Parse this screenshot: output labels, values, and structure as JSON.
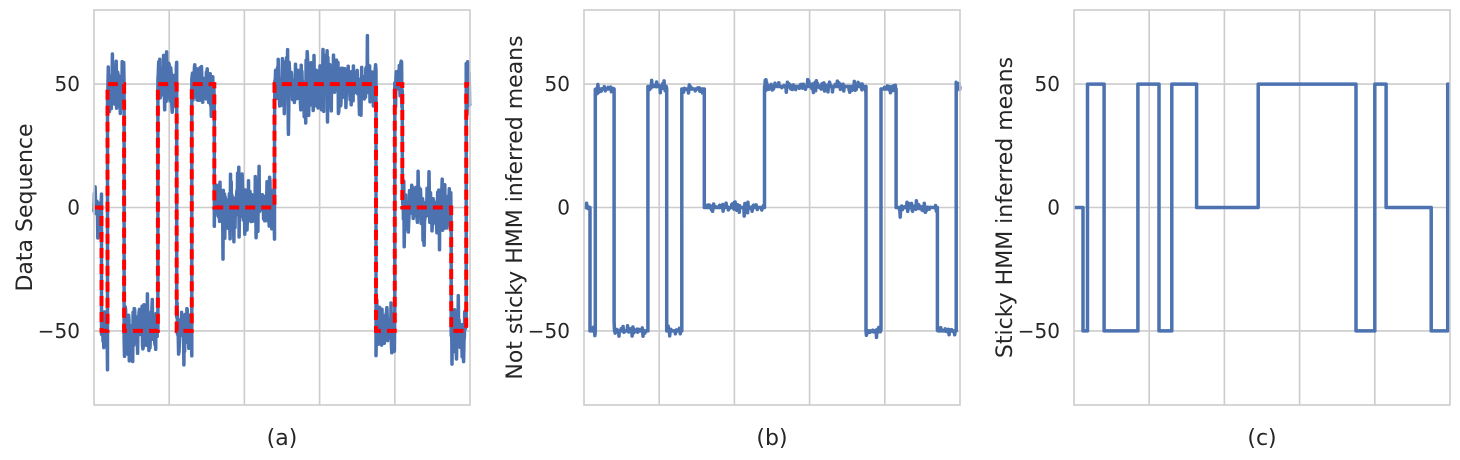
{
  "chart_data": [
    {
      "type": "line",
      "panel_label": "(a)",
      "ylabel": "Data Sequence",
      "ylim": [
        -80,
        80
      ],
      "xlim": [
        0,
        500
      ],
      "yticks": [
        -50,
        0,
        50
      ],
      "xgrid": [
        100,
        200,
        300,
        400
      ],
      "grid": true,
      "series": [
        {
          "style": "noisy",
          "color": "#4c72b0",
          "noise": 6,
          "segments": [
            [
              0,
              10,
              0
            ],
            [
              10,
              18,
              -50
            ],
            [
              18,
              40,
              50
            ],
            [
              40,
              85,
              -50
            ],
            [
              85,
              110,
              50
            ],
            [
              110,
              130,
              -50
            ],
            [
              130,
              160,
              50
            ],
            [
              160,
              240,
              0
            ],
            [
              240,
              375,
              50
            ],
            [
              375,
              400,
              -50
            ],
            [
              400,
              410,
              50
            ],
            [
              410,
              475,
              0
            ],
            [
              475,
              495,
              -50
            ],
            [
              495,
              500,
              50
            ]
          ]
        },
        {
          "style": "dashed",
          "color": "#ff0000",
          "segments": [
            [
              0,
              10,
              0
            ],
            [
              10,
              18,
              -50
            ],
            [
              18,
              40,
              50
            ],
            [
              40,
              85,
              -50
            ],
            [
              85,
              110,
              50
            ],
            [
              110,
              130,
              -50
            ],
            [
              130,
              160,
              50
            ],
            [
              160,
              240,
              0
            ],
            [
              240,
              375,
              50
            ],
            [
              375,
              400,
              -50
            ],
            [
              400,
              410,
              50
            ],
            [
              410,
              475,
              0
            ],
            [
              475,
              495,
              -50
            ],
            [
              495,
              500,
              50
            ]
          ]
        }
      ]
    },
    {
      "type": "line",
      "panel_label": "(b)",
      "ylabel": "Not sticky HMM inferred means",
      "ylim": [
        -80,
        80
      ],
      "xlim": [
        0,
        500
      ],
      "yticks": [
        -50,
        0,
        50
      ],
      "xgrid": [
        100,
        200,
        300,
        400
      ],
      "grid": true,
      "series": [
        {
          "style": "jitter",
          "color": "#4c72b0",
          "noise": 1.2,
          "segments": [
            [
              0,
              8,
              0
            ],
            [
              8,
              15,
              -50
            ],
            [
              15,
              40,
              48
            ],
            [
              40,
              85,
              -50
            ],
            [
              85,
              110,
              49
            ],
            [
              110,
              130,
              -50
            ],
            [
              130,
              160,
              48
            ],
            [
              160,
              240,
              0
            ],
            [
              240,
              375,
              49
            ],
            [
              375,
              395,
              -50
            ],
            [
              395,
              415,
              48
            ],
            [
              415,
              470,
              0
            ],
            [
              470,
              495,
              -50
            ],
            [
              495,
              500,
              49
            ]
          ]
        }
      ]
    },
    {
      "type": "line",
      "panel_label": "(c)",
      "ylabel": "Sticky HMM inferred means",
      "ylim": [
        -80,
        80
      ],
      "xlim": [
        0,
        500
      ],
      "yticks": [
        -50,
        0,
        50
      ],
      "xgrid": [
        100,
        200,
        300,
        400
      ],
      "grid": true,
      "series": [
        {
          "style": "step",
          "color": "#4c72b0",
          "segments": [
            [
              0,
              12,
              0
            ],
            [
              12,
              18,
              -50
            ],
            [
              18,
              40,
              50
            ],
            [
              40,
              85,
              -50
            ],
            [
              85,
              113,
              50
            ],
            [
              113,
              130,
              -50
            ],
            [
              130,
              163,
              50
            ],
            [
              163,
              245,
              0
            ],
            [
              245,
              375,
              50
            ],
            [
              375,
              400,
              -50
            ],
            [
              400,
              415,
              50
            ],
            [
              415,
              475,
              0
            ],
            [
              475,
              497,
              -50
            ],
            [
              497,
              500,
              50
            ]
          ]
        }
      ]
    }
  ]
}
